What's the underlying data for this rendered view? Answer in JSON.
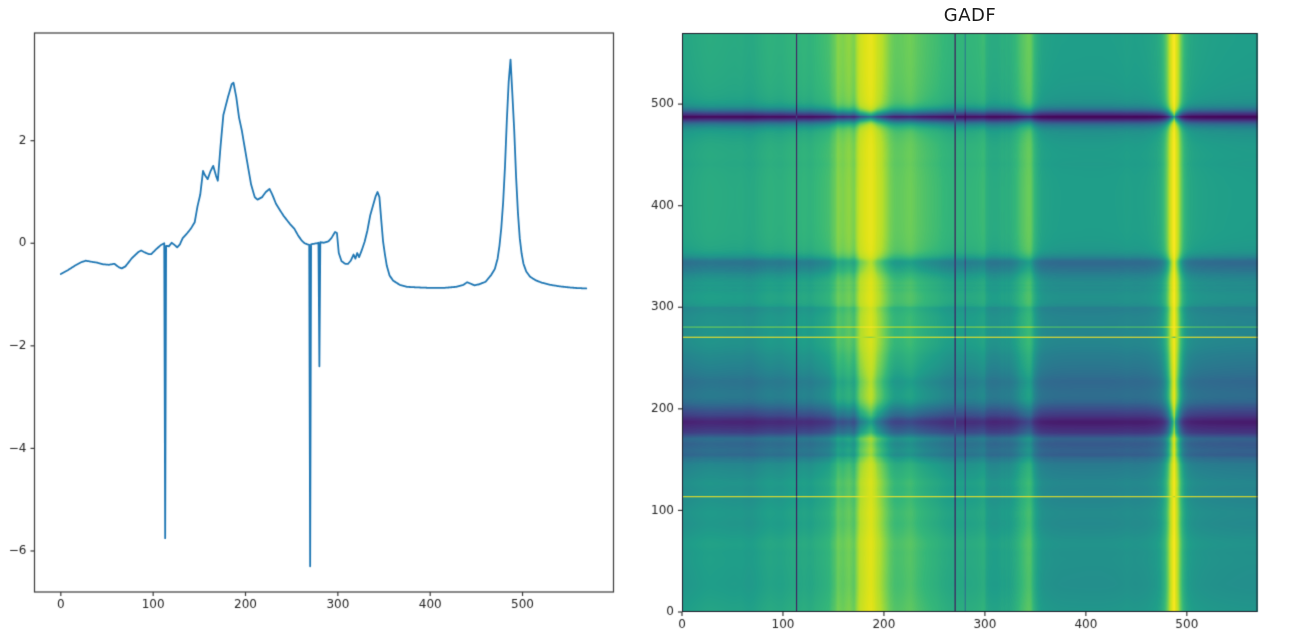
{
  "figure": {
    "background": "#ffffff",
    "text_color": "#262626",
    "spine_color": "#3a3a3a",
    "tick_font_px": 12
  },
  "chart_data": [
    {
      "type": "line",
      "title": "",
      "xlabel": "",
      "ylabel": "",
      "line_color": "#1f77b4",
      "line_width": 1.8,
      "grid": false,
      "legend": null,
      "xlim": [
        -28.5,
        598.5
      ],
      "ylim": [
        -6.8,
        4.1
      ],
      "xticks": [
        0,
        100,
        200,
        300,
        400,
        500
      ],
      "yticks": [
        -6,
        -4,
        -2,
        0,
        2
      ],
      "n_points": 570,
      "breakpoints": [
        [
          0,
          -0.6
        ],
        [
          8,
          -0.52
        ],
        [
          15,
          -0.44
        ],
        [
          22,
          -0.37
        ],
        [
          27,
          -0.34
        ],
        [
          33,
          -0.36
        ],
        [
          40,
          -0.38
        ],
        [
          46,
          -0.41
        ],
        [
          52,
          -0.42
        ],
        [
          58,
          -0.4
        ],
        [
          63,
          -0.47
        ],
        [
          66,
          -0.49
        ],
        [
          70,
          -0.45
        ],
        [
          77,
          -0.29
        ],
        [
          84,
          -0.17
        ],
        [
          87,
          -0.14
        ],
        [
          90,
          -0.17
        ],
        [
          95,
          -0.21
        ],
        [
          98,
          -0.21
        ],
        [
          103,
          -0.12
        ],
        [
          108,
          -0.04
        ],
        [
          112,
          0.0
        ],
        [
          113,
          -5.75
        ],
        [
          114,
          -0.05
        ],
        [
          117,
          -0.06
        ],
        [
          120,
          0.01
        ],
        [
          123,
          -0.03
        ],
        [
          126,
          -0.08
        ],
        [
          129,
          -0.02
        ],
        [
          132,
          0.1
        ],
        [
          137,
          0.2
        ],
        [
          141,
          0.29
        ],
        [
          145,
          0.41
        ],
        [
          148,
          0.72
        ],
        [
          151,
          0.95
        ],
        [
          154,
          1.41
        ],
        [
          156,
          1.33
        ],
        [
          159,
          1.25
        ],
        [
          162,
          1.4
        ],
        [
          165,
          1.51
        ],
        [
          168,
          1.32
        ],
        [
          170,
          1.22
        ],
        [
          173,
          1.9
        ],
        [
          176,
          2.5
        ],
        [
          181,
          2.85
        ],
        [
          185,
          3.1
        ],
        [
          187,
          3.13
        ],
        [
          190,
          2.85
        ],
        [
          193,
          2.45
        ],
        [
          196,
          2.2
        ],
        [
          201,
          1.67
        ],
        [
          206,
          1.15
        ],
        [
          210,
          0.9
        ],
        [
          213,
          0.85
        ],
        [
          218,
          0.9
        ],
        [
          222,
          1.0
        ],
        [
          226,
          1.06
        ],
        [
          229,
          0.95
        ],
        [
          233,
          0.77
        ],
        [
          241,
          0.54
        ],
        [
          248,
          0.38
        ],
        [
          253,
          0.28
        ],
        [
          257,
          0.15
        ],
        [
          261,
          0.05
        ],
        [
          264,
          0.0
        ],
        [
          267,
          -0.02
        ],
        [
          269,
          -0.03
        ],
        [
          270,
          -6.3
        ],
        [
          271,
          -0.02
        ],
        [
          274,
          -0.01
        ],
        [
          277,
          0.0
        ],
        [
          279,
          0.01
        ],
        [
          280,
          -2.4
        ],
        [
          281,
          0.02
        ],
        [
          285,
          0.01
        ],
        [
          290,
          0.04
        ],
        [
          293,
          0.1
        ],
        [
          297,
          0.22
        ],
        [
          299,
          0.2
        ],
        [
          301,
          -0.19
        ],
        [
          304,
          -0.35
        ],
        [
          308,
          -0.4
        ],
        [
          311,
          -0.4
        ],
        [
          314,
          -0.34
        ],
        [
          317,
          -0.22
        ],
        [
          319,
          -0.3
        ],
        [
          321,
          -0.19
        ],
        [
          323,
          -0.27
        ],
        [
          326,
          -0.13
        ],
        [
          329,
          0.03
        ],
        [
          332,
          0.25
        ],
        [
          335,
          0.54
        ],
        [
          338,
          0.73
        ],
        [
          341,
          0.92
        ],
        [
          343,
          1.0
        ],
        [
          345,
          0.9
        ],
        [
          347,
          0.45
        ],
        [
          349,
          0.03
        ],
        [
          351,
          -0.22
        ],
        [
          353,
          -0.44
        ],
        [
          356,
          -0.63
        ],
        [
          360,
          -0.73
        ],
        [
          367,
          -0.81
        ],
        [
          375,
          -0.85
        ],
        [
          385,
          -0.86
        ],
        [
          400,
          -0.87
        ],
        [
          415,
          -0.87
        ],
        [
          428,
          -0.85
        ],
        [
          436,
          -0.81
        ],
        [
          440,
          -0.76
        ],
        [
          444,
          -0.79
        ],
        [
          448,
          -0.82
        ],
        [
          453,
          -0.8
        ],
        [
          460,
          -0.75
        ],
        [
          466,
          -0.62
        ],
        [
          470,
          -0.5
        ],
        [
          473,
          -0.3
        ],
        [
          475,
          -0.05
        ],
        [
          477,
          0.3
        ],
        [
          479,
          0.8
        ],
        [
          481,
          1.5
        ],
        [
          483,
          2.4
        ],
        [
          485,
          3.15
        ],
        [
          487,
          3.58
        ],
        [
          489,
          2.9
        ],
        [
          491,
          2.2
        ],
        [
          493,
          1.3
        ],
        [
          495,
          0.6
        ],
        [
          497,
          0.1
        ],
        [
          499,
          -0.2
        ],
        [
          501,
          -0.4
        ],
        [
          504,
          -0.55
        ],
        [
          508,
          -0.65
        ],
        [
          514,
          -0.72
        ],
        [
          521,
          -0.77
        ],
        [
          530,
          -0.81
        ],
        [
          540,
          -0.84
        ],
        [
          550,
          -0.86
        ],
        [
          560,
          -0.875
        ],
        [
          569,
          -0.88
        ]
      ]
    },
    {
      "type": "heatmap",
      "title": "GADF",
      "xlabel": "",
      "ylabel": "",
      "xlim": [
        0,
        570
      ],
      "ylim": [
        0,
        570
      ],
      "xticks": [
        0,
        100,
        200,
        300,
        400,
        500
      ],
      "yticks": [
        0,
        100,
        200,
        300,
        400,
        500
      ],
      "origin": "lower",
      "colormap": "viridis",
      "vmin": -1,
      "vmax": 1,
      "transform": "GADF[i][j] = sin(phi_i - phi_j), phi_k = arccos(series scaled to [-1,1]); series is the line chart series",
      "colormap_stops": [
        [
          0.0,
          "#440154"
        ],
        [
          0.1,
          "#482878"
        ],
        [
          0.2,
          "#3e4989"
        ],
        [
          0.3,
          "#31688e"
        ],
        [
          0.4,
          "#26828e"
        ],
        [
          0.5,
          "#1f9e89"
        ],
        [
          0.6,
          "#35b779"
        ],
        [
          0.7,
          "#6ece58"
        ],
        [
          0.8,
          "#b5de2b"
        ],
        [
          0.9,
          "#dfe318"
        ],
        [
          1.0,
          "#fde725"
        ]
      ]
    }
  ]
}
